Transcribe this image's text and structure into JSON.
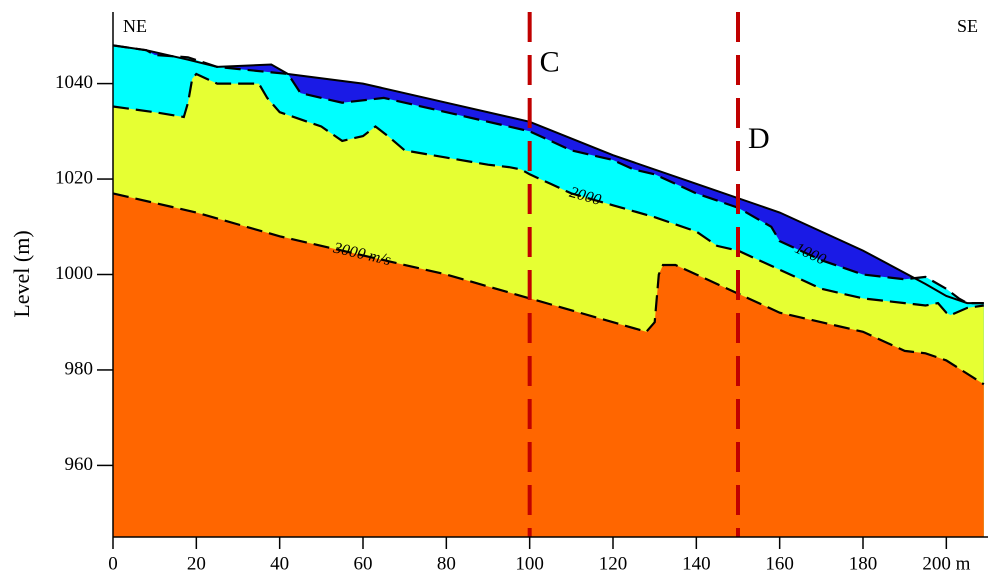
{
  "chart_data": {
    "type": "section",
    "y_label": "Level (m)",
    "left_label": "NE",
    "right_label": "SE",
    "xlim": [
      0,
      210
    ],
    "ylim": [
      945,
      1055
    ],
    "xticks": [
      0,
      20,
      40,
      60,
      80,
      100,
      120,
      140,
      160,
      180,
      {
        "value": 200,
        "label": "200 m"
      }
    ],
    "yticks": [
      960,
      980,
      1000,
      1020,
      1040
    ],
    "surface": {
      "color": "#1a1ae6",
      "x": [
        0,
        8,
        18,
        25,
        38,
        42,
        60,
        80,
        100,
        120,
        140,
        160,
        180,
        195,
        200,
        205,
        209
      ],
      "values": [
        1048,
        1047,
        1045,
        1043.5,
        1044,
        1042,
        1040,
        1036,
        1032,
        1025,
        1019,
        1013,
        1005,
        998,
        995.5,
        994,
        994
      ]
    },
    "series": [
      {
        "name": "1000",
        "color": "#00ffff",
        "x": [
          0,
          8,
          10,
          18,
          25,
          42,
          45,
          55,
          65,
          80,
          100,
          110,
          120,
          125,
          130,
          140,
          150,
          158,
          160,
          170,
          180,
          190,
          195,
          200,
          203,
          205,
          209
        ],
        "values": [
          1048,
          1047,
          1046,
          1045.5,
          1043.5,
          1042,
          1038,
          1036,
          1037,
          1034,
          1030,
          1026,
          1024,
          1022,
          1021,
          1017,
          1014,
          1010,
          1007,
          1003,
          1000,
          999,
          999.5,
          997,
          995,
          994,
          994
        ]
      },
      {
        "name": "2000",
        "color": "#e6ff33",
        "x": [
          0,
          10,
          17,
          18,
          19,
          20,
          25,
          35,
          37,
          40,
          50,
          55,
          60,
          63,
          66,
          70,
          80,
          90,
          95,
          98,
          100,
          105,
          110,
          120,
          130,
          140,
          145,
          150,
          160,
          170,
          180,
          190,
          195,
          198,
          200,
          201,
          205,
          209
        ],
        "values": [
          1035.2,
          1034,
          1033,
          1036,
          1041,
          1042,
          1040,
          1040,
          1037,
          1034,
          1031,
          1028,
          1029,
          1031,
          1029,
          1026,
          1024.5,
          1023,
          1022.5,
          1022,
          1021,
          1019,
          1017,
          1014.5,
          1012,
          1009,
          1006,
          1005,
          1001,
          997,
          995,
          994,
          993.5,
          994,
          992,
          991.5,
          993,
          993.5
        ]
      },
      {
        "name": "3000 m/s",
        "color": "#ff6600",
        "x": [
          0,
          20,
          40,
          60,
          80,
          100,
          120,
          128,
          130,
          131,
          132,
          135,
          140,
          150,
          160,
          170,
          180,
          190,
          195,
          200,
          209
        ],
        "values": [
          1017,
          1013,
          1008,
          1004,
          1000,
          995,
          990,
          988,
          990,
          1000,
          1002,
          1002,
          1000,
          996,
          992,
          990,
          988,
          984,
          983.5,
          982,
          977
        ]
      }
    ],
    "sections": [
      {
        "label": "C",
        "x": 100,
        "color": "#c00000"
      },
      {
        "label": "D",
        "x": 150,
        "color": "#c00000"
      }
    ]
  }
}
